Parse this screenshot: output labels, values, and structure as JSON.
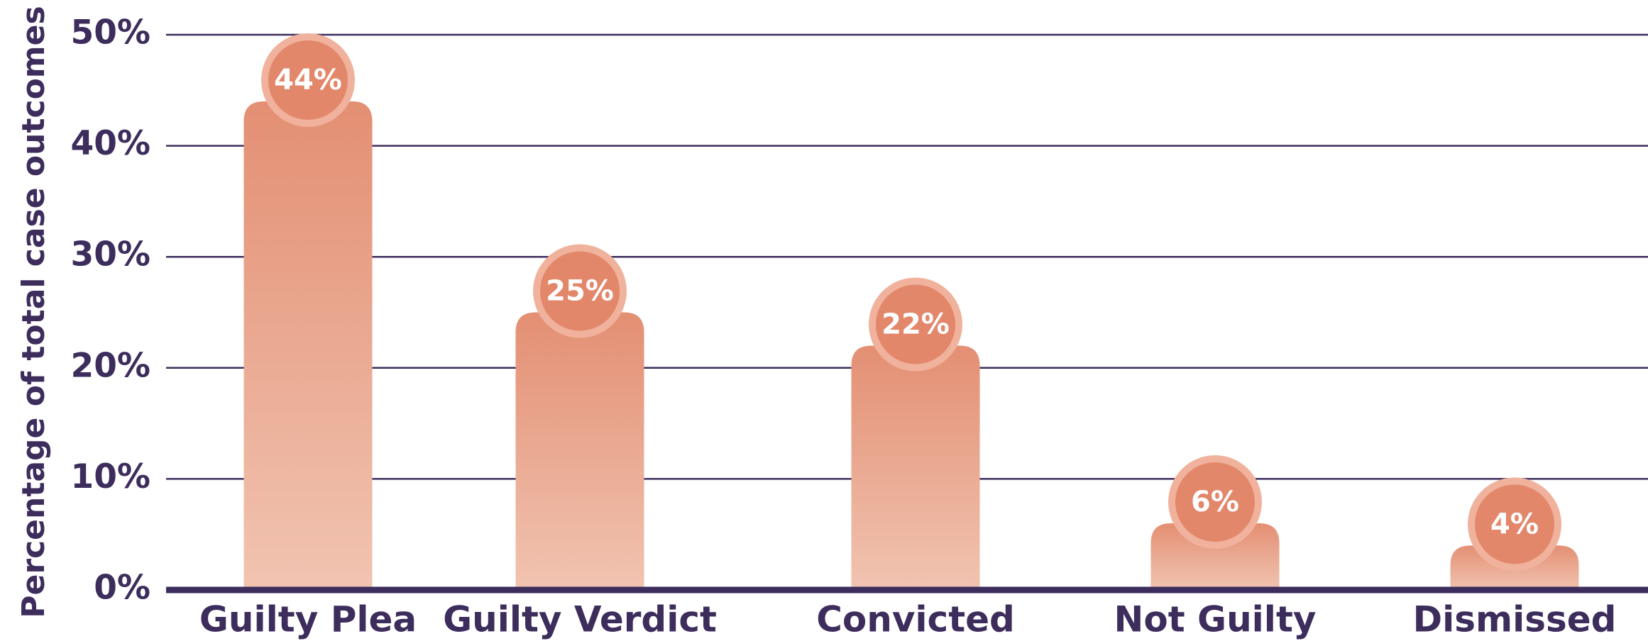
{
  "chart_data": {
    "type": "bar",
    "y_label": "Percentage of total case outcomes",
    "categories": [
      "Guilty Plea",
      "Guilty Verdict",
      "Convicted",
      "Not Guilty",
      "Dismissed"
    ],
    "values": [
      44,
      25,
      22,
      6,
      4
    ],
    "value_labels": [
      "44%",
      "25%",
      "22%",
      "6%",
      "4%"
    ],
    "color": "#e38f73",
    "ylim": [
      0,
      50
    ],
    "yticks": [
      {
        "value": 0,
        "label": "0%"
      },
      {
        "value": 10,
        "label": "10%"
      },
      {
        "value": 20,
        "label": "20%"
      },
      {
        "value": 30,
        "label": "30%"
      },
      {
        "value": 40,
        "label": "40%"
      },
      {
        "value": 50,
        "label": "50%"
      }
    ],
    "grid": true
  }
}
